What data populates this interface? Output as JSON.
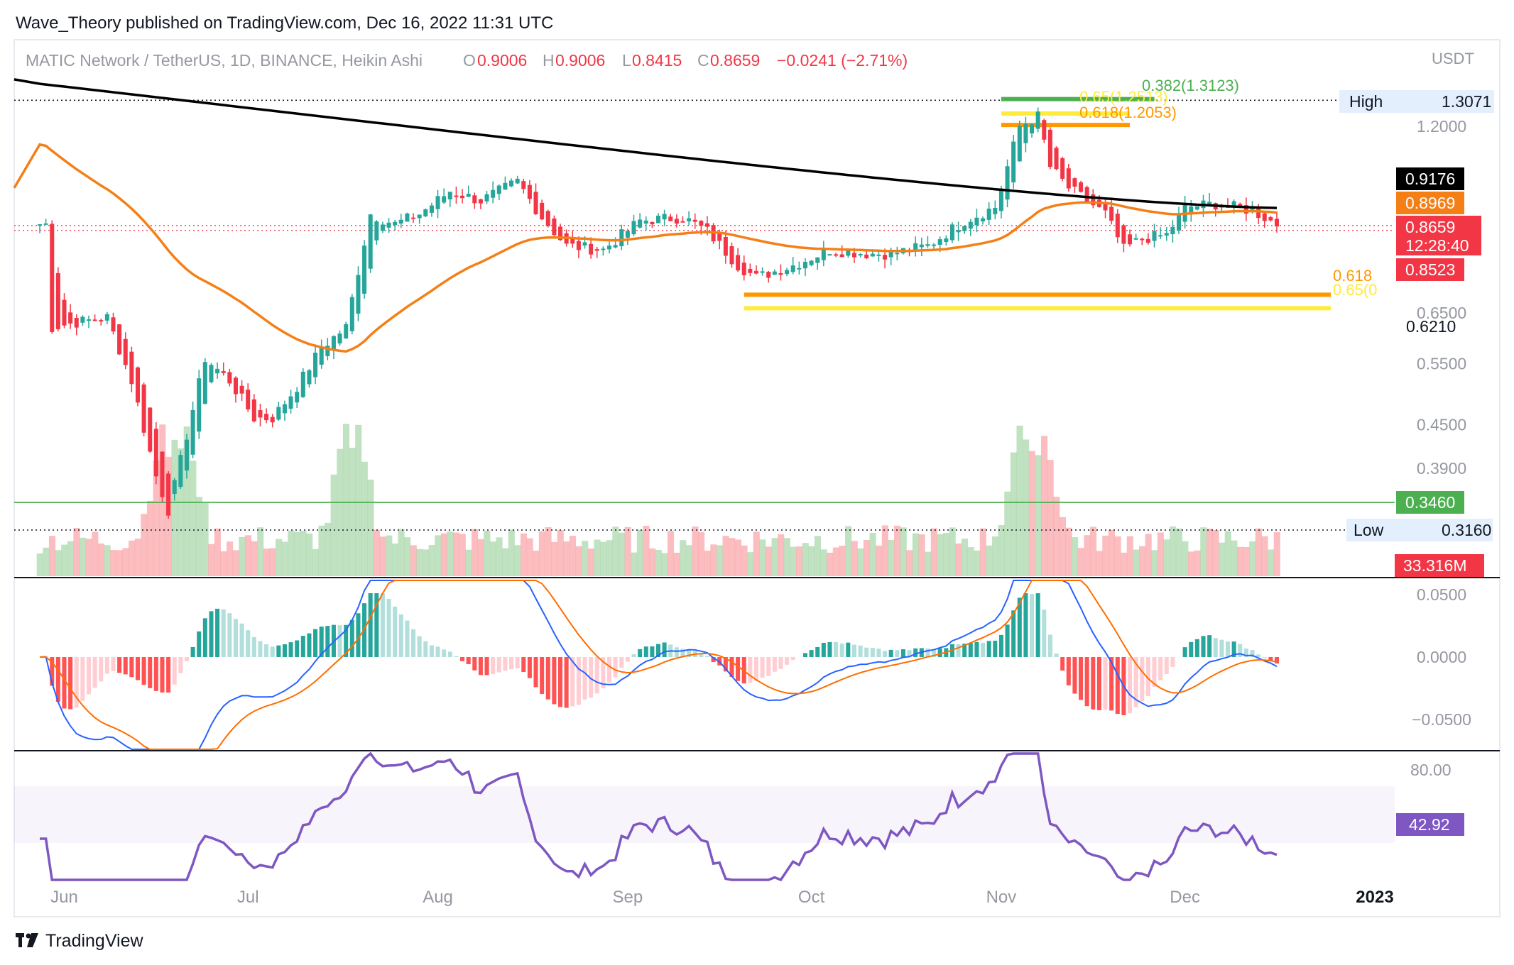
{
  "publisher_line": "Wave_Theory published on TradingView.com, Dec 16, 2022 11:31 UTC",
  "footer_brand": "TradingView",
  "header": {
    "symbol": "MATIC Network / TetherUS, 1D, BINANCE, Heikin Ashi",
    "o_label": "O",
    "o_value": "0.9006",
    "h_label": "H",
    "h_value": "0.9006",
    "l_label": "L",
    "l_value": "0.8415",
    "c_label": "C",
    "c_value": "0.8659",
    "change": "−0.0241 (−2.71%)"
  },
  "price_axis": {
    "currency": "USDT",
    "ticks": [
      "1.2000",
      "0.6500",
      "0.5500",
      "0.4500",
      "0.3900"
    ]
  },
  "badges": {
    "high_label": "High",
    "high_value": "1.3071",
    "ema200": "0.9176",
    "ema50": "0.8969",
    "last_price": "0.8659",
    "countdown": "12:28:40",
    "support": "0.8523",
    "low_fib": "0.6210",
    "green_line": "0.3460",
    "low_label": "Low",
    "low_value": "0.3160",
    "volume": "33.316M"
  },
  "fib_labels": {
    "top_382": "0.382(1.3123)",
    "top_618": "0.618(1.2053)",
    "top_hidden": "0.65(1.2513)",
    "bottom_618": "0.618",
    "bottom_65": "0.65(0"
  },
  "macd_axis": [
    "0.0500",
    "0.0000",
    "−0.0500"
  ],
  "rsi_axis": [
    "80.00"
  ],
  "rsi_value": "42.92",
  "time_axis": [
    "Jun",
    "Jul",
    "Aug",
    "Sep",
    "Oct",
    "Nov",
    "Dec",
    "2023"
  ],
  "colors": {
    "up": "#26a69a",
    "down": "#f23645",
    "ema200": "#000000",
    "ema50": "#f57f17",
    "fib_green": "#4caf50",
    "fib_yellow": "#ffeb3b",
    "fib_orange": "#ff9800",
    "macd": "#2962ff",
    "signal": "#ff6d00",
    "rsi": "#7e57c2"
  },
  "chart_data": {
    "type": "candlestick",
    "title": "MATIC Network / TetherUS, 1D, BINANCE, Heikin Ashi",
    "ylabel": "USDT",
    "y_scale": "log",
    "ylim": [
      0.3,
      1.36
    ],
    "x_categories": [
      "Jun",
      "Jul",
      "Aug",
      "Sep",
      "Oct",
      "Nov",
      "Dec",
      "2023"
    ],
    "close_path": [
      [
        "2022-05-30",
        0.62
      ],
      [
        "2022-06-03",
        0.63
      ],
      [
        "2022-06-08",
        0.64
      ],
      [
        "2022-06-12",
        0.52
      ],
      [
        "2022-06-16",
        0.38
      ],
      [
        "2022-06-18",
        0.34
      ],
      [
        "2022-06-20",
        0.4
      ],
      [
        "2022-06-24",
        0.56
      ],
      [
        "2022-06-28",
        0.52
      ],
      [
        "2022-07-02",
        0.46
      ],
      [
        "2022-07-05",
        0.46
      ],
      [
        "2022-07-09",
        0.51
      ],
      [
        "2022-07-13",
        0.58
      ],
      [
        "2022-07-17",
        0.62
      ],
      [
        "2022-07-21",
        0.9
      ],
      [
        "2022-07-25",
        0.87
      ],
      [
        "2022-07-29",
        0.9
      ],
      [
        "2022-08-03",
        0.97
      ],
      [
        "2022-08-08",
        0.94
      ],
      [
        "2022-08-14",
        1.0
      ],
      [
        "2022-08-18",
        0.89
      ],
      [
        "2022-08-22",
        0.81
      ],
      [
        "2022-08-28",
        0.8
      ],
      [
        "2022-09-03",
        0.88
      ],
      [
        "2022-09-10",
        0.89
      ],
      [
        "2022-09-14",
        0.85
      ],
      [
        "2022-09-19",
        0.76
      ],
      [
        "2022-09-22",
        0.73
      ],
      [
        "2022-09-28",
        0.76
      ],
      [
        "2022-10-04",
        0.8
      ],
      [
        "2022-10-10",
        0.79
      ],
      [
        "2022-10-14",
        0.79
      ],
      [
        "2022-10-20",
        0.81
      ],
      [
        "2022-10-26",
        0.88
      ],
      [
        "2022-10-31",
        0.92
      ],
      [
        "2022-11-04",
        1.2
      ],
      [
        "2022-11-07",
        1.24
      ],
      [
        "2022-11-09",
        1.05
      ],
      [
        "2022-11-12",
        0.98
      ],
      [
        "2022-11-18",
        0.9
      ],
      [
        "2022-11-21",
        0.8
      ],
      [
        "2022-11-24",
        0.83
      ],
      [
        "2022-11-28",
        0.84
      ],
      [
        "2022-12-01",
        0.92
      ],
      [
        "2022-12-06",
        0.93
      ],
      [
        "2022-12-12",
        0.91
      ],
      [
        "2022-12-16",
        0.87
      ]
    ],
    "ema200_last": 0.9176,
    "ema50_last": 0.8969,
    "last_price": 0.8659,
    "session_high": 1.3071,
    "session_low": 0.316,
    "horizontal_levels": [
      1.3071,
      0.8659,
      0.346,
      0.316
    ],
    "fibonacci": [
      {
        "label": "0.382",
        "price": 1.3123
      },
      {
        "label": "0.65",
        "price": 1.2513
      },
      {
        "label": "0.618",
        "price": 1.2053
      },
      {
        "label": "0.618",
        "price": 0.69
      },
      {
        "label": "0.65",
        "price": 0.66
      }
    ],
    "volume_last": "33.316M",
    "macd": {
      "ylim": [
        -0.05,
        0.05
      ],
      "last": 0.0
    },
    "rsi": {
      "band": [
        30,
        70
      ],
      "last": 42.92
    }
  }
}
